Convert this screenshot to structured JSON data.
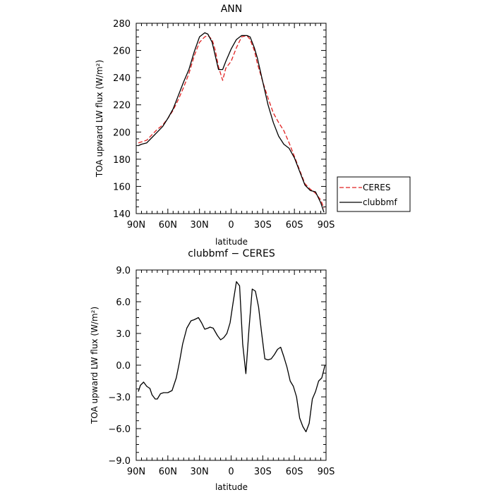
{
  "chart_data": [
    {
      "type": "line",
      "title": "ANN",
      "xlabel": "latitude",
      "ylabel": "TOA upward LW flux (W/m²)",
      "xlim": [
        90,
        -90
      ],
      "ylim": [
        140,
        280
      ],
      "xticks": [
        90,
        60,
        30,
        0,
        -30,
        -60,
        -90
      ],
      "xtick_labels": [
        "90N",
        "60N",
        "30N",
        "0",
        "30S",
        "60S",
        "90S"
      ],
      "yticks": [
        140,
        160,
        180,
        200,
        220,
        240,
        260,
        280
      ],
      "ytick_labels": [
        "140",
        "160",
        "180",
        "200",
        "220",
        "240",
        "260",
        "280"
      ],
      "legend": {
        "placement": "right",
        "entries": [
          "CERES",
          "clubbmf"
        ]
      },
      "series": [
        {
          "name": "CERES",
          "color": "#e02020",
          "dash": "dashed",
          "x": [
            88,
            80,
            75,
            70,
            65,
            60,
            55,
            50,
            45,
            40,
            35,
            30,
            25,
            22,
            18,
            15,
            12,
            8,
            5,
            0,
            -5,
            -10,
            -15,
            -18,
            -22,
            -25,
            -30,
            -35,
            -40,
            -45,
            -50,
            -55,
            -60,
            -65,
            -70,
            -75,
            -80,
            -85,
            -88
          ],
          "y": [
            192,
            194,
            198,
            202,
            205,
            210,
            216,
            224,
            233,
            243,
            256,
            266,
            270,
            271,
            268,
            260,
            248,
            238,
            247,
            252,
            262,
            270,
            271,
            268,
            260,
            250,
            237,
            225,
            214,
            207,
            201,
            192,
            182,
            172,
            162,
            158,
            155,
            150,
            144
          ]
        },
        {
          "name": "clubbmf",
          "color": "#000000",
          "dash": "solid",
          "x": [
            88,
            85,
            80,
            75,
            70,
            65,
            60,
            55,
            50,
            45,
            40,
            35,
            30,
            25,
            22,
            18,
            15,
            12,
            8,
            5,
            0,
            -5,
            -10,
            -15,
            -18,
            -22,
            -25,
            -30,
            -35,
            -40,
            -45,
            -50,
            -55,
            -60,
            -65,
            -70,
            -75,
            -80,
            -85,
            -88
          ],
          "y": [
            190,
            191,
            192,
            196,
            200,
            204,
            210,
            217,
            227,
            237,
            246,
            259,
            270,
            273,
            272,
            266,
            256,
            246,
            246,
            252,
            261,
            268,
            271,
            271,
            270,
            262,
            254,
            237,
            220,
            207,
            197,
            191,
            188,
            181,
            171,
            161,
            157,
            156,
            148,
            141
          ]
        }
      ]
    },
    {
      "type": "line",
      "title": "clubbmf − CERES",
      "xlabel": "latitude",
      "ylabel": "TOA upward LW flux (W/m²)",
      "xlim": [
        90,
        -90
      ],
      "ylim": [
        -9,
        9
      ],
      "xticks": [
        90,
        60,
        30,
        0,
        -30,
        -60,
        -90
      ],
      "xtick_labels": [
        "90N",
        "60N",
        "30N",
        "0",
        "30S",
        "60S",
        "90S"
      ],
      "yticks": [
        -9,
        -6,
        -3,
        0,
        3,
        6,
        9
      ],
      "ytick_labels": [
        "−9.0",
        "−6.0",
        "−3.0",
        "0.0",
        "3.0",
        "6.0",
        "9.0"
      ],
      "series": [
        {
          "name": "clubbmf − CERES",
          "color": "#000000",
          "dash": "solid",
          "x": [
            88,
            86,
            83,
            80,
            77,
            75,
            72,
            70,
            67,
            64,
            60,
            56,
            52,
            49,
            46,
            42,
            38,
            35,
            31,
            28,
            25,
            22,
            20,
            17,
            13,
            10,
            7,
            4,
            1,
            -2,
            -5,
            -8,
            -11,
            -14,
            -17,
            -20,
            -23,
            -26,
            -29,
            -32,
            -35,
            -38,
            -41,
            -44,
            -47,
            -50,
            -53,
            -56,
            -59,
            -62,
            -65,
            -68,
            -71,
            -74,
            -77,
            -80,
            -83,
            -86,
            -89
          ],
          "y": [
            -2.5,
            -1.9,
            -1.6,
            -2.0,
            -2.2,
            -2.8,
            -3.2,
            -3.2,
            -2.7,
            -2.6,
            -2.6,
            -2.4,
            -1.2,
            0.3,
            2.0,
            3.5,
            4.2,
            4.3,
            4.5,
            4.0,
            3.4,
            3.5,
            3.6,
            3.5,
            2.8,
            2.4,
            2.6,
            3.0,
            4.0,
            6.0,
            7.9,
            7.5,
            2.0,
            -0.8,
            3.5,
            7.2,
            7.0,
            5.5,
            3.0,
            0.6,
            0.5,
            0.6,
            1.0,
            1.5,
            1.7,
            0.8,
            -0.2,
            -1.5,
            -2.0,
            -3.0,
            -5.0,
            -5.8,
            -6.3,
            -5.5,
            -3.2,
            -2.5,
            -1.5,
            -1.2,
            0.0
          ]
        }
      ]
    }
  ]
}
